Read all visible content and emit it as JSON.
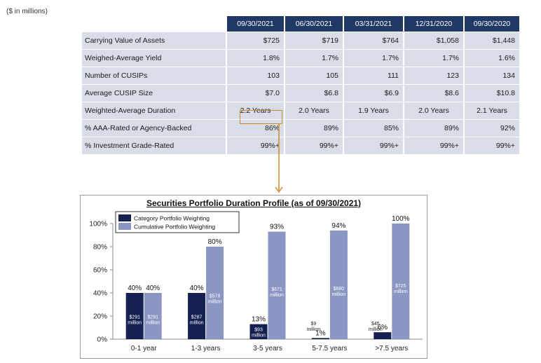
{
  "units_note": "($ in millions)",
  "table": {
    "columns": [
      "09/30/2021",
      "06/30/2021",
      "03/31/2021",
      "12/31/2020",
      "09/30/2020"
    ],
    "rows": [
      {
        "label": "Carrying Value of Assets",
        "values": [
          "$725",
          "$719",
          "$764",
          "$1,058",
          "$1,448"
        ]
      },
      {
        "label": "Weighed-Average Yield",
        "values": [
          "1.8%",
          "1.7%",
          "1.7%",
          "1.7%",
          "1.6%"
        ]
      },
      {
        "label": "Number of CUSIPs",
        "values": [
          "103",
          "105",
          "111",
          "123",
          "134"
        ]
      },
      {
        "label": "Average CUSIP Size",
        "values": [
          "$7.0",
          "$6.8",
          "$6.9",
          "$8.6",
          "$10.8"
        ]
      },
      {
        "label": "Weighted-Average Duration",
        "values": [
          "2.2 Years",
          "2.0 Years",
          "1.9 Years",
          "2.0 Years",
          "2.1 Years"
        ]
      },
      {
        "label": "% AAA-Rated or Agency-Backed",
        "values": [
          "86%",
          "89%",
          "85%",
          "89%",
          "92%"
        ]
      },
      {
        "label": "% Investment Grade-Rated",
        "values": [
          "99%+",
          "99%+",
          "99%+",
          "99%+",
          "99%+"
        ]
      }
    ]
  },
  "colors": {
    "header": "#1f3864",
    "row_bg": "#d9dde8",
    "highlight": "#c98a2b",
    "category_bar": "#14204f",
    "cumulative_bar": "#8b97c2"
  },
  "chart_data": {
    "type": "bar",
    "title": "Securities Portfolio Duration Profile  (as of 09/30/2021)",
    "categories": [
      "0-1 year",
      "1-3 years",
      "3-5 years",
      "5-7.5 years",
      ">7.5 years"
    ],
    "ylim": [
      0,
      100
    ],
    "yticks": [
      "0%",
      "20%",
      "40%",
      "60%",
      "80%",
      "100%"
    ],
    "legend_position": "top-left",
    "series": [
      {
        "name": "Category Portfolio Weighting",
        "values": [
          40,
          40,
          13,
          1,
          6
        ],
        "value_labels": [
          "40%",
          "40%",
          "13%",
          "1%",
          "6%"
        ],
        "amount_labels": [
          "$291",
          "$287",
          "$93",
          "$9",
          "$45"
        ],
        "amount_suffix": "million"
      },
      {
        "name": "Cumulative Portfolio Weighting",
        "values": [
          40,
          80,
          93,
          94,
          100
        ],
        "value_labels": [
          "40%",
          "80%",
          "93%",
          "94%",
          "100%"
        ],
        "amount_labels": [
          "$291",
          "$578",
          "$671",
          "$680",
          "$725"
        ],
        "amount_suffix": "million"
      }
    ]
  }
}
